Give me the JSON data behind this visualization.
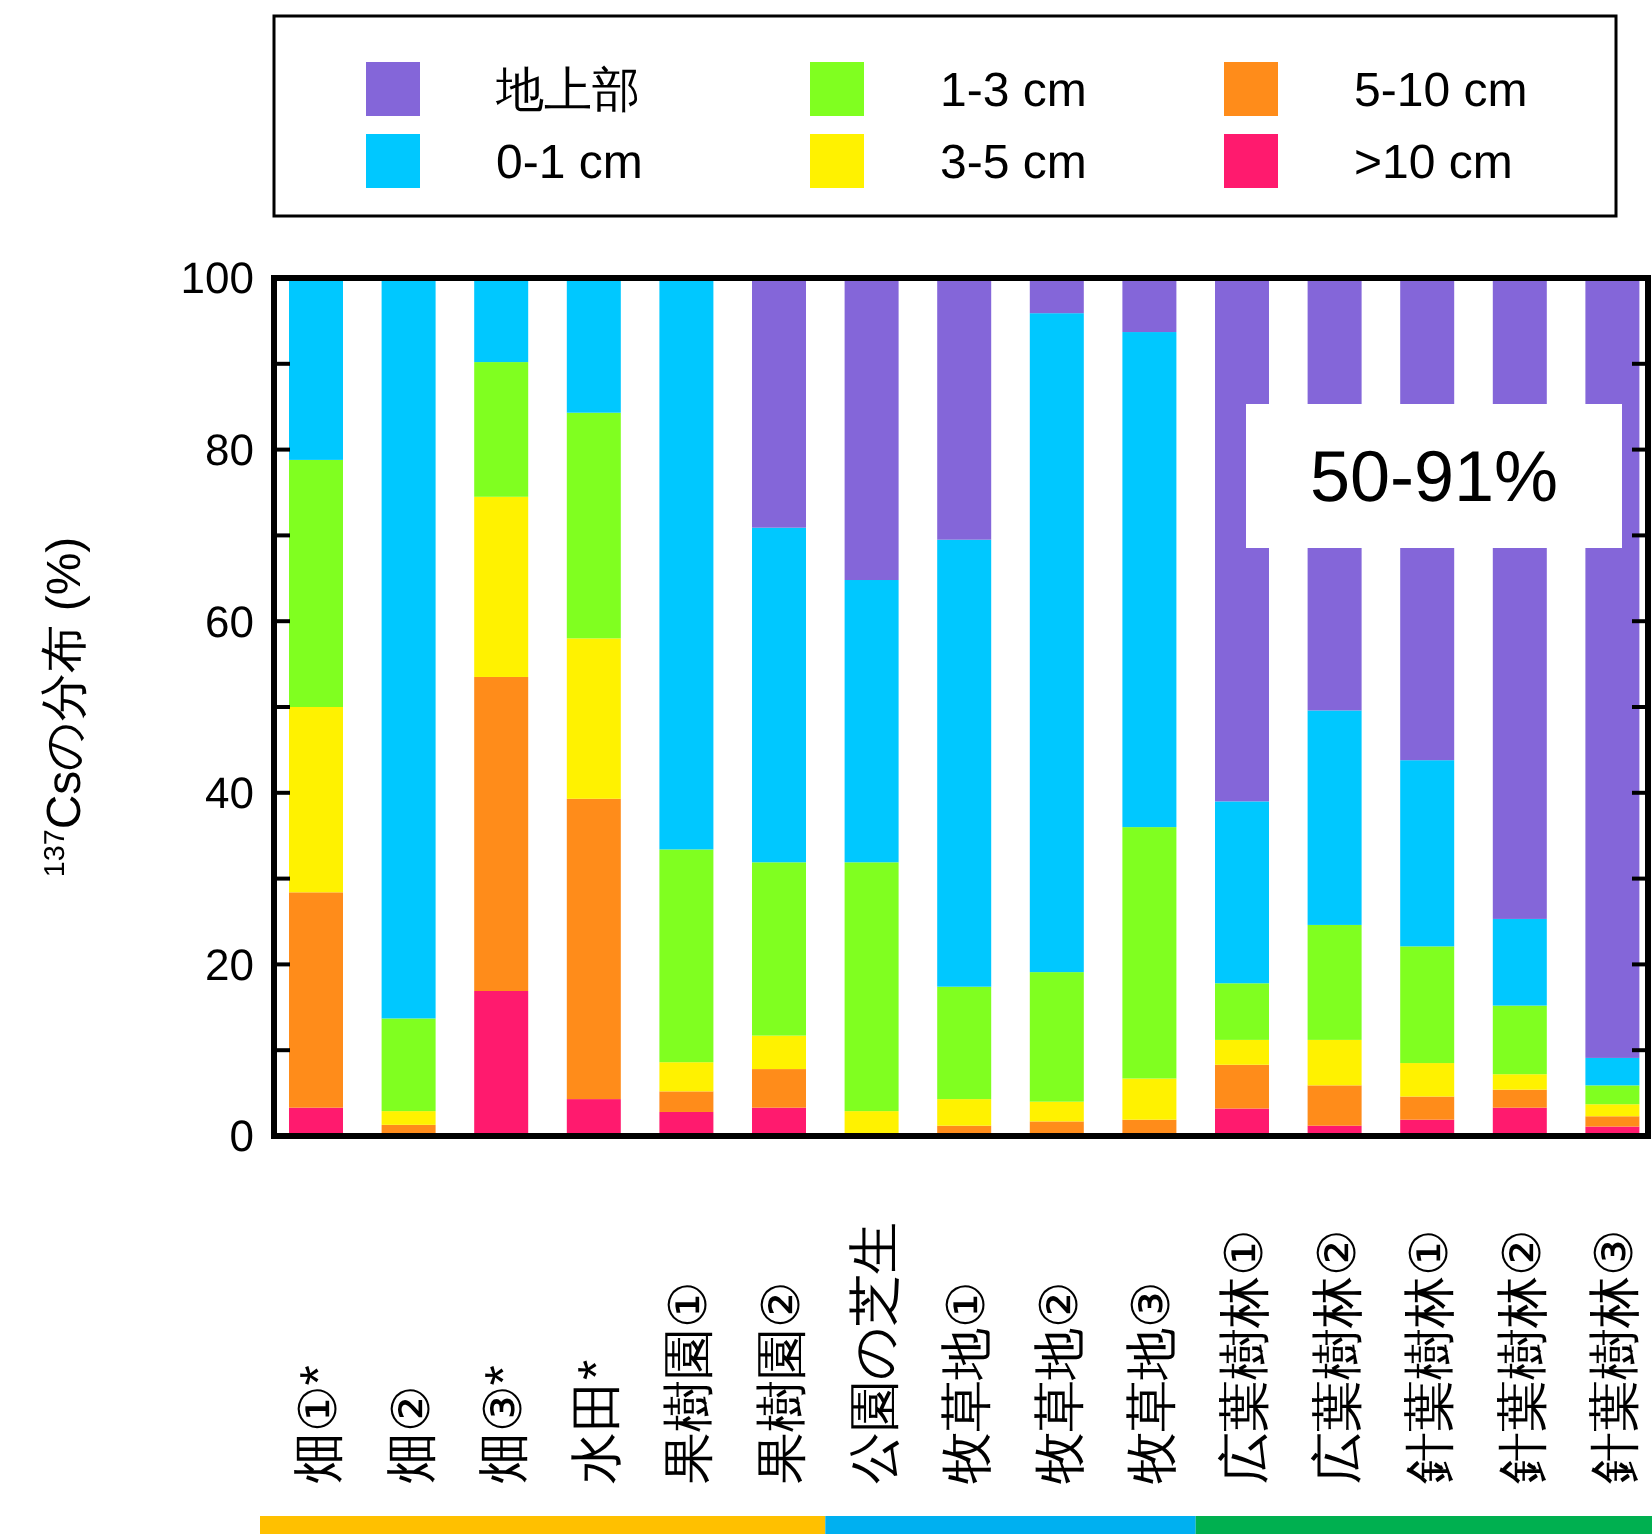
{
  "chart_data": {
    "type": "bar",
    "stacked": true,
    "ylabel": "$^{137}$Csの分布 (%)",
    "categories": [
      "畑①*",
      "畑②",
      "畑③*",
      "水田*",
      "果樹園①",
      "果樹園②",
      "公園の芝生",
      "牧草地①",
      "牧草地②",
      "牧草地③",
      "広葉樹林①",
      "広葉樹林②",
      "針葉樹林①",
      "針葉樹林②",
      "針葉樹林③"
    ],
    "series": [
      {
        "name": ">10 cm",
        "color": "#ff1a6e",
        "values": [
          3.3,
          0,
          16.9,
          4.3,
          2.8,
          3.3,
          0,
          0,
          0,
          0,
          3.2,
          1.2,
          1.9,
          3.3,
          1.1
        ]
      },
      {
        "name": "5-10 cm",
        "color": "#ff8c1a",
        "values": [
          25.1,
          1.3,
          36.6,
          35,
          2.4,
          4.5,
          0,
          1.2,
          1.7,
          1.9,
          5.1,
          4.7,
          2.7,
          2.1,
          1.2
        ]
      },
      {
        "name": "3-5 cm",
        "color": "#fff200",
        "values": [
          21.6,
          1.6,
          21,
          18.7,
          3.4,
          3.9,
          2.9,
          3.1,
          2.3,
          4.8,
          2.9,
          5.3,
          3.9,
          1.8,
          1.4
        ]
      },
      {
        "name": "1-3 cm",
        "color": "#80ff20",
        "values": [
          28.8,
          10.8,
          15.7,
          26.3,
          24.8,
          20.2,
          29,
          13.1,
          15.1,
          29.3,
          6.6,
          13.4,
          13.6,
          8,
          2.2
        ]
      },
      {
        "name": "0-1 cm",
        "color": "#00c8ff",
        "values": [
          21.2,
          86.3,
          9.8,
          15.7,
          66.6,
          39,
          32.9,
          52.1,
          76.8,
          57.7,
          21.2,
          25,
          21.7,
          10.1,
          3.2
        ]
      },
      {
        "name": "地上部",
        "color": "#8466d9",
        "values": [
          0,
          0,
          0,
          0,
          0,
          29.1,
          35.2,
          30.5,
          4.1,
          6.3,
          61,
          50.4,
          56.2,
          74.7,
          90.9
        ]
      }
    ],
    "ylim": [
      0,
      100
    ],
    "yticks": [
      0,
      {
        "value": 10,
        "label": null
      },
      20,
      {
        "value": 30,
        "label": null
      },
      40,
      {
        "value": 50,
        "label": null
      },
      60,
      {
        "value": 70,
        "label": null
      },
      80,
      {
        "value": 90,
        "label": null
      },
      100
    ],
    "annotations": [
      "50-91%"
    ],
    "legend": "top"
  }
}
